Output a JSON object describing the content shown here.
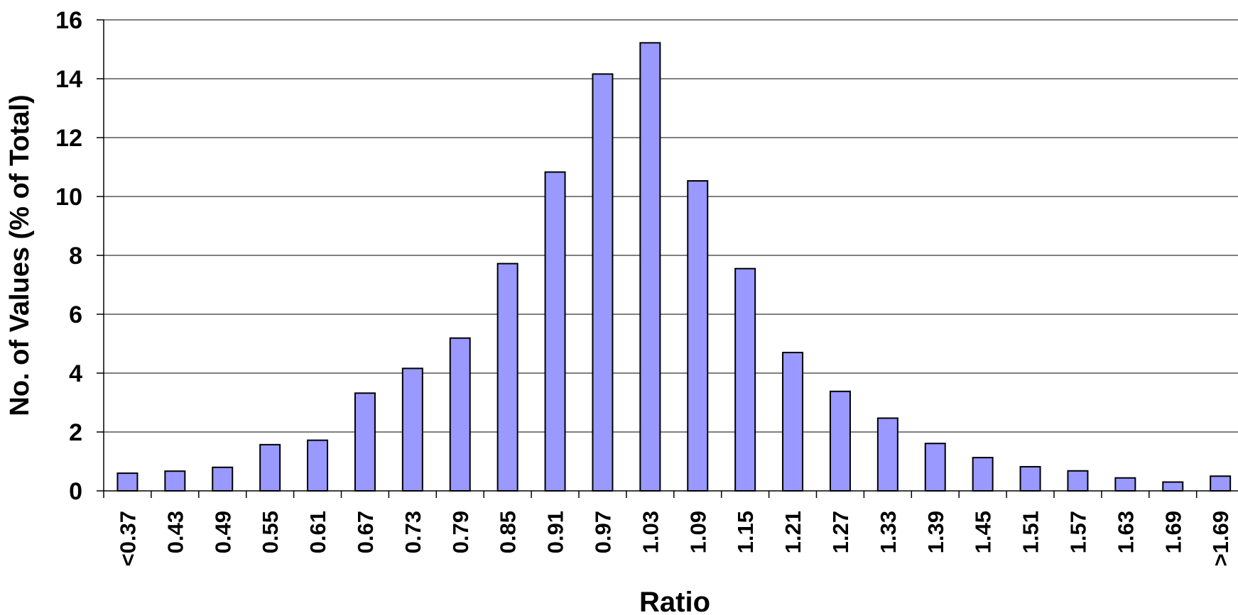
{
  "chart_data": {
    "type": "bar",
    "title": "",
    "xlabel": "Ratio",
    "ylabel": "No. of Values (% of Total)",
    "ylim": [
      0,
      16
    ],
    "yticks": [
      0,
      2,
      4,
      6,
      8,
      10,
      12,
      14,
      16
    ],
    "grid": true,
    "legend": "none",
    "colors": {
      "bar_fill": "#9999ff",
      "bar_stroke": "#000000",
      "grid": "#000000"
    },
    "categories": [
      "<0.37",
      "0.43",
      "0.49",
      "0.55",
      "0.61",
      "0.67",
      "0.73",
      "0.79",
      "0.85",
      "0.91",
      "0.97",
      "1.03",
      "1.09",
      "1.15",
      "1.21",
      "1.27",
      "1.33",
      "1.39",
      "1.45",
      "1.51",
      "1.57",
      "1.63",
      "1.69",
      ">1.69"
    ],
    "values": [
      0.6,
      0.67,
      0.8,
      1.57,
      1.72,
      3.32,
      4.16,
      5.19,
      7.72,
      10.83,
      14.16,
      15.22,
      10.53,
      7.55,
      4.7,
      3.38,
      2.47,
      1.61,
      1.13,
      0.82,
      0.68,
      0.44,
      0.3,
      0.5
    ]
  }
}
